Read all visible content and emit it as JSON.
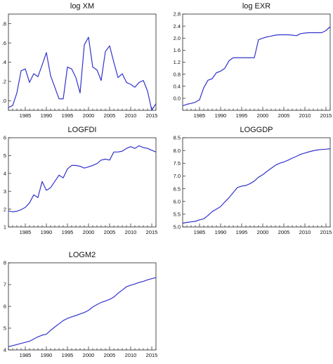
{
  "chart_data": [
    {
      "type": "line",
      "title": "log XM",
      "x": [
        1981,
        1982,
        1983,
        1984,
        1985,
        1986,
        1987,
        1988,
        1989,
        1990,
        1991,
        1992,
        1993,
        1994,
        1995,
        1996,
        1997,
        1998,
        1999,
        2000,
        2001,
        2002,
        2003,
        2004,
        2005,
        2006,
        2007,
        2008,
        2009,
        2010,
        2011,
        2012,
        2013,
        2014,
        2015,
        2016
      ],
      "values": [
        -0.07,
        -0.05,
        0.08,
        0.31,
        0.33,
        0.19,
        0.28,
        0.25,
        0.37,
        0.5,
        0.26,
        0.14,
        0.02,
        0.02,
        0.35,
        0.33,
        0.24,
        0.08,
        0.58,
        0.66,
        0.35,
        0.32,
        0.21,
        0.51,
        0.57,
        0.4,
        0.24,
        0.28,
        0.19,
        0.17,
        0.14,
        0.19,
        0.21,
        0.1,
        -0.1,
        -0.03
      ],
      "ylim": [
        -0.1,
        0.9
      ],
      "yticks": [
        0.0,
        0.2,
        0.4,
        0.6,
        0.8
      ],
      "ytick_labels": [
        ".0",
        ".2",
        ".4",
        ".6",
        ".8"
      ],
      "xlim": [
        1981,
        2016
      ],
      "xticks": [
        1985,
        1990,
        1995,
        2000,
        2005,
        2010,
        2015
      ],
      "xtick_labels": [
        "1985",
        "1990",
        "1995",
        "2000",
        "2005",
        "2010",
        "2015"
      ],
      "grid": false,
      "color": "#3333cc"
    },
    {
      "type": "line",
      "title": "log EXR",
      "x": [
        1981,
        1982,
        1983,
        1984,
        1985,
        1986,
        1987,
        1988,
        1989,
        1990,
        1991,
        1992,
        1993,
        1994,
        1995,
        1996,
        1997,
        1998,
        1999,
        2000,
        2001,
        2002,
        2003,
        2004,
        2005,
        2006,
        2007,
        2008,
        2009,
        2010,
        2011,
        2012,
        2013,
        2014,
        2015,
        2016
      ],
      "values": [
        -0.25,
        -0.2,
        -0.17,
        -0.13,
        -0.05,
        0.35,
        0.6,
        0.65,
        0.85,
        0.9,
        1.0,
        1.25,
        1.35,
        1.35,
        1.35,
        1.35,
        1.35,
        1.35,
        1.95,
        2.0,
        2.04,
        2.07,
        2.1,
        2.11,
        2.11,
        2.11,
        2.1,
        2.08,
        2.15,
        2.17,
        2.18,
        2.18,
        2.18,
        2.18,
        2.25,
        2.38
      ],
      "ylim": [
        -0.4,
        2.8
      ],
      "yticks": [
        0.0,
        0.4,
        0.8,
        1.2,
        1.6,
        2.0,
        2.4,
        2.8
      ],
      "ytick_labels": [
        "0.0",
        "0.4",
        "0.8",
        "1.2",
        "1.6",
        "2.0",
        "2.4",
        "2.8"
      ],
      "xlim": [
        1981,
        2016
      ],
      "xticks": [
        1985,
        1990,
        1995,
        2000,
        2005,
        2010,
        2015
      ],
      "xtick_labels": [
        "1985",
        "1990",
        "1995",
        "2000",
        "2005",
        "2010",
        "2015"
      ],
      "grid": false,
      "color": "#3333cc"
    },
    {
      "type": "line",
      "title": "LOGFDI",
      "x": [
        1981,
        1982,
        1983,
        1984,
        1985,
        1986,
        1987,
        1988,
        1989,
        1990,
        1991,
        1992,
        1993,
        1994,
        1995,
        1996,
        1997,
        1998,
        1999,
        2000,
        2001,
        2002,
        2003,
        2004,
        2005,
        2006,
        2007,
        2008,
        2009,
        2010,
        2011,
        2012,
        2013,
        2014,
        2015,
        2016
      ],
      "values": [
        1.9,
        1.85,
        1.88,
        1.97,
        2.1,
        2.35,
        2.8,
        2.65,
        3.55,
        3.05,
        3.2,
        3.55,
        3.9,
        3.75,
        4.25,
        4.45,
        4.45,
        4.4,
        4.3,
        4.37,
        4.45,
        4.55,
        4.75,
        4.8,
        4.75,
        5.2,
        5.2,
        5.25,
        5.4,
        5.5,
        5.4,
        5.55,
        5.45,
        5.4,
        5.3,
        5.2
      ],
      "ylim": [
        1,
        6
      ],
      "yticks": [
        1,
        2,
        3,
        4,
        5,
        6
      ],
      "ytick_labels": [
        "1",
        "2",
        "3",
        "4",
        "5",
        "6"
      ],
      "xlim": [
        1981,
        2016
      ],
      "xticks": [
        1985,
        1990,
        1995,
        2000,
        2005,
        2010,
        2015
      ],
      "xtick_labels": [
        "1985",
        "1990",
        "1995",
        "2000",
        "2005",
        "2010",
        "2015"
      ],
      "grid": false,
      "color": "#3333cc"
    },
    {
      "type": "line",
      "title": "LOGGDP",
      "x": [
        1981,
        1982,
        1983,
        1984,
        1985,
        1986,
        1987,
        1988,
        1989,
        1990,
        1991,
        1992,
        1993,
        1994,
        1995,
        1996,
        1997,
        1998,
        1999,
        2000,
        2001,
        2002,
        2003,
        2004,
        2005,
        2006,
        2007,
        2008,
        2009,
        2010,
        2011,
        2012,
        2013,
        2014,
        2015,
        2016
      ],
      "values": [
        5.15,
        5.18,
        5.2,
        5.22,
        5.28,
        5.32,
        5.45,
        5.6,
        5.7,
        5.8,
        5.98,
        6.15,
        6.35,
        6.55,
        6.6,
        6.63,
        6.7,
        6.8,
        6.95,
        7.05,
        7.18,
        7.3,
        7.42,
        7.5,
        7.55,
        7.62,
        7.7,
        7.77,
        7.85,
        7.9,
        7.95,
        7.99,
        8.02,
        8.04,
        8.05,
        8.07
      ],
      "ylim": [
        5.0,
        8.5
      ],
      "yticks": [
        5.0,
        5.5,
        6.0,
        6.5,
        7.0,
        7.5,
        8.0,
        8.5
      ],
      "ytick_labels": [
        "5.0",
        "5.5",
        "6.0",
        "6.5",
        "7.0",
        "7.5",
        "8.0",
        "8.5"
      ],
      "xlim": [
        1981,
        2016
      ],
      "xticks": [
        1985,
        1990,
        1995,
        2000,
        2005,
        2010,
        2015
      ],
      "xtick_labels": [
        "1985",
        "1990",
        "1995",
        "2000",
        "2005",
        "2010",
        "2015"
      ],
      "grid": false,
      "color": "#3333cc"
    },
    {
      "type": "line",
      "title": "LOGM2",
      "x": [
        1981,
        1982,
        1983,
        1984,
        1985,
        1986,
        1987,
        1988,
        1989,
        1990,
        1991,
        1992,
        1993,
        1994,
        1995,
        1996,
        1997,
        1998,
        1999,
        2000,
        2001,
        2002,
        2003,
        2004,
        2005,
        2006,
        2007,
        2008,
        2009,
        2010,
        2011,
        2012,
        2013,
        2014,
        2015,
        2016
      ],
      "values": [
        4.15,
        4.2,
        4.25,
        4.3,
        4.35,
        4.4,
        4.5,
        4.6,
        4.68,
        4.72,
        4.9,
        5.05,
        5.2,
        5.35,
        5.45,
        5.52,
        5.58,
        5.65,
        5.72,
        5.82,
        5.97,
        6.08,
        6.18,
        6.25,
        6.32,
        6.43,
        6.6,
        6.75,
        6.9,
        6.97,
        7.03,
        7.1,
        7.15,
        7.22,
        7.27,
        7.32
      ],
      "ylim": [
        4,
        8
      ],
      "yticks": [
        4,
        5,
        6,
        7,
        8
      ],
      "ytick_labels": [
        "4",
        "5",
        "6",
        "7",
        "8"
      ],
      "xlim": [
        1981,
        2016
      ],
      "xticks": [
        1985,
        1990,
        1995,
        2000,
        2005,
        2010,
        2015
      ],
      "xtick_labels": [
        "1985",
        "1990",
        "1995",
        "2000",
        "2005",
        "2010",
        "2015"
      ],
      "grid": false,
      "color": "#3333cc"
    }
  ]
}
